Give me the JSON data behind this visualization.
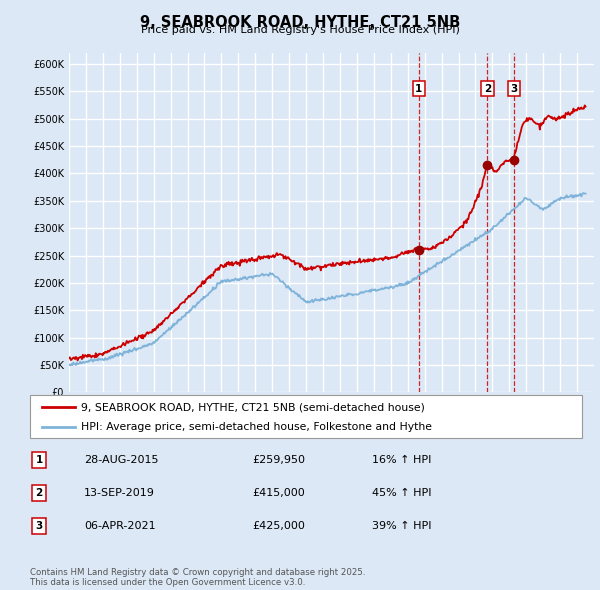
{
  "title": "9, SEABROOK ROAD, HYTHE, CT21 5NB",
  "subtitle": "Price paid vs. HM Land Registry's House Price Index (HPI)",
  "ylim": [
    0,
    620000
  ],
  "yticks": [
    0,
    50000,
    100000,
    150000,
    200000,
    250000,
    300000,
    350000,
    400000,
    450000,
    500000,
    550000,
    600000
  ],
  "background_color": "#dce8f5",
  "plot_bg_color": "#dce8f5",
  "grid_color": "#ffffff",
  "hpi_line_color": "#7fb3d9",
  "price_line_color": "#cc0000",
  "sale_dot_color": "#990000",
  "xmin": 1995,
  "xmax": 2026,
  "sales": [
    {
      "label": "1",
      "date_x": 2015.66,
      "price": 259950
    },
    {
      "label": "2",
      "date_x": 2019.71,
      "price": 415000
    },
    {
      "label": "3",
      "date_x": 2021.27,
      "price": 425000
    }
  ],
  "legend_entries": [
    {
      "label": "9, SEABROOK ROAD, HYTHE, CT21 5NB (semi-detached house)",
      "color": "#cc0000"
    },
    {
      "label": "HPI: Average price, semi-detached house, Folkestone and Hythe",
      "color": "#7fb3d9"
    }
  ],
  "table_entries": [
    {
      "num": "1",
      "date": "28-AUG-2015",
      "price": "£259,950",
      "change": "16% ↑ HPI"
    },
    {
      "num": "2",
      "date": "13-SEP-2019",
      "price": "£415,000",
      "change": "45% ↑ HPI"
    },
    {
      "num": "3",
      "date": "06-APR-2021",
      "price": "£425,000",
      "change": "39% ↑ HPI"
    }
  ],
  "footnote": "Contains HM Land Registry data © Crown copyright and database right 2025.\nThis data is licensed under the Open Government Licence v3.0."
}
